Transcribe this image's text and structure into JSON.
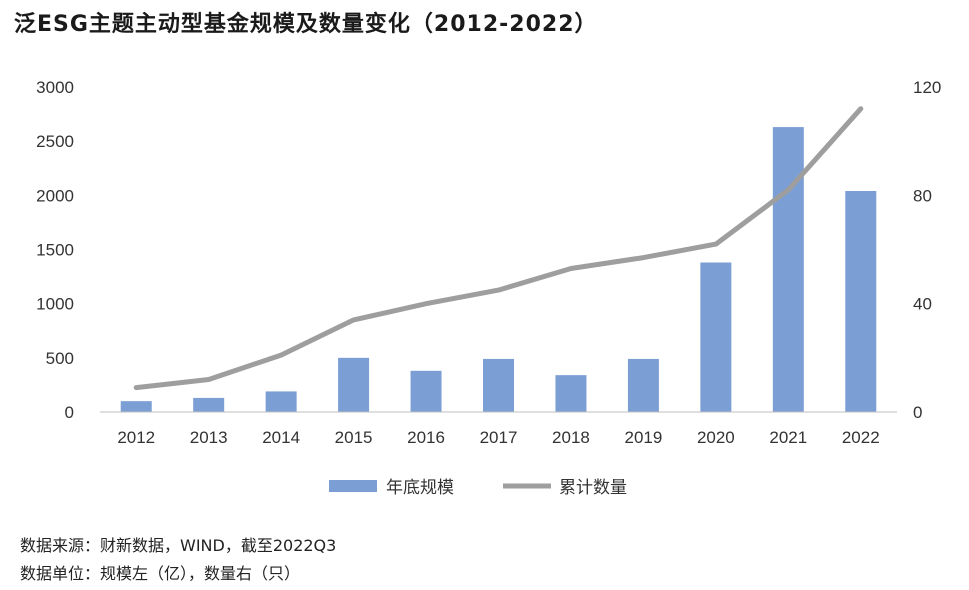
{
  "chart_data": {
    "type": "bar",
    "title": "泛ESG主题主动型基金规模及数量变化（2012-2022）",
    "categories": [
      "2012",
      "2013",
      "2014",
      "2015",
      "2016",
      "2017",
      "2018",
      "2019",
      "2020",
      "2021",
      "2022"
    ],
    "series": [
      {
        "name": "年底规模",
        "type": "bar",
        "axis": "left",
        "color": "#7b9fd4",
        "values": [
          100,
          130,
          190,
          500,
          380,
          490,
          340,
          490,
          1380,
          2630,
          2040
        ]
      },
      {
        "name": "累计数量",
        "type": "line",
        "axis": "right",
        "color": "#9e9e9e",
        "values": [
          9,
          12,
          21,
          34,
          40,
          45,
          53,
          57,
          62,
          82,
          112
        ]
      }
    ],
    "yleft": {
      "min": 0,
      "max": 3000,
      "ticks": [
        0,
        500,
        1000,
        1500,
        2000,
        2500,
        3000
      ]
    },
    "yright": {
      "min": 0,
      "max": 120,
      "ticks": [
        0,
        40,
        80,
        120
      ]
    },
    "legend_position": "bottom",
    "grid": false
  },
  "source": {
    "line1": "数据来源：财新数据，WIND，截至2022Q3",
    "line2": "数据单位：规模左（亿），数量右（只）"
  }
}
